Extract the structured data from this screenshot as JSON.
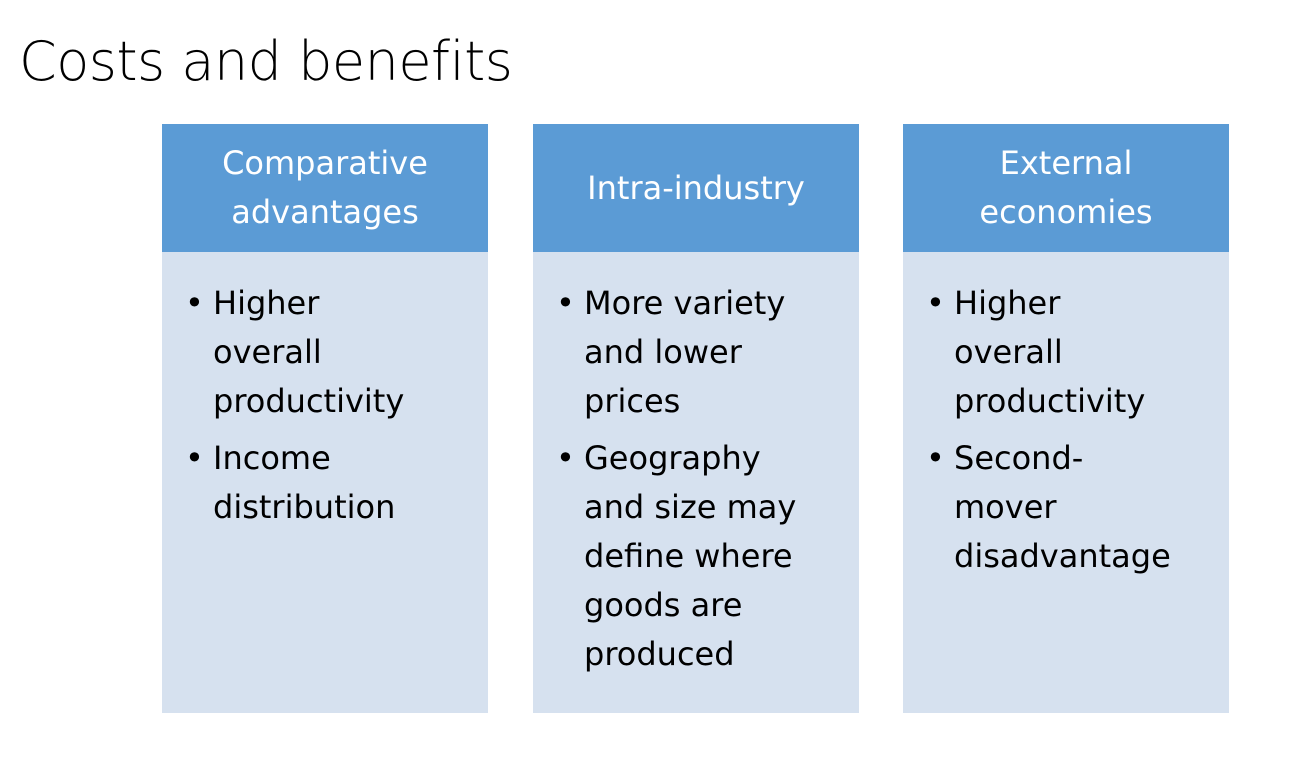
{
  "title": "Costs and benefits",
  "columns": [
    {
      "header": "Comparative\nadvantages",
      "bullets": [
        "Higher\noverall\nproductivity",
        "Income\ndistribution"
      ]
    },
    {
      "header": "Intra-industry",
      "bullets": [
        "More variety\nand lower\nprices",
        "Geography\nand size may\ndefine where\ngoods are\nproduced"
      ]
    },
    {
      "header": "External\neconomies",
      "bullets": [
        "Higher\noverall\nproductivity",
        "Second-\nmover\ndisadvantage"
      ]
    }
  ],
  "bullet_glyph": "•",
  "colors": {
    "header_bg": "#5b9bd5",
    "body_bg": "#d6e1ef",
    "header_text": "#ffffff",
    "body_text": "#000000"
  }
}
